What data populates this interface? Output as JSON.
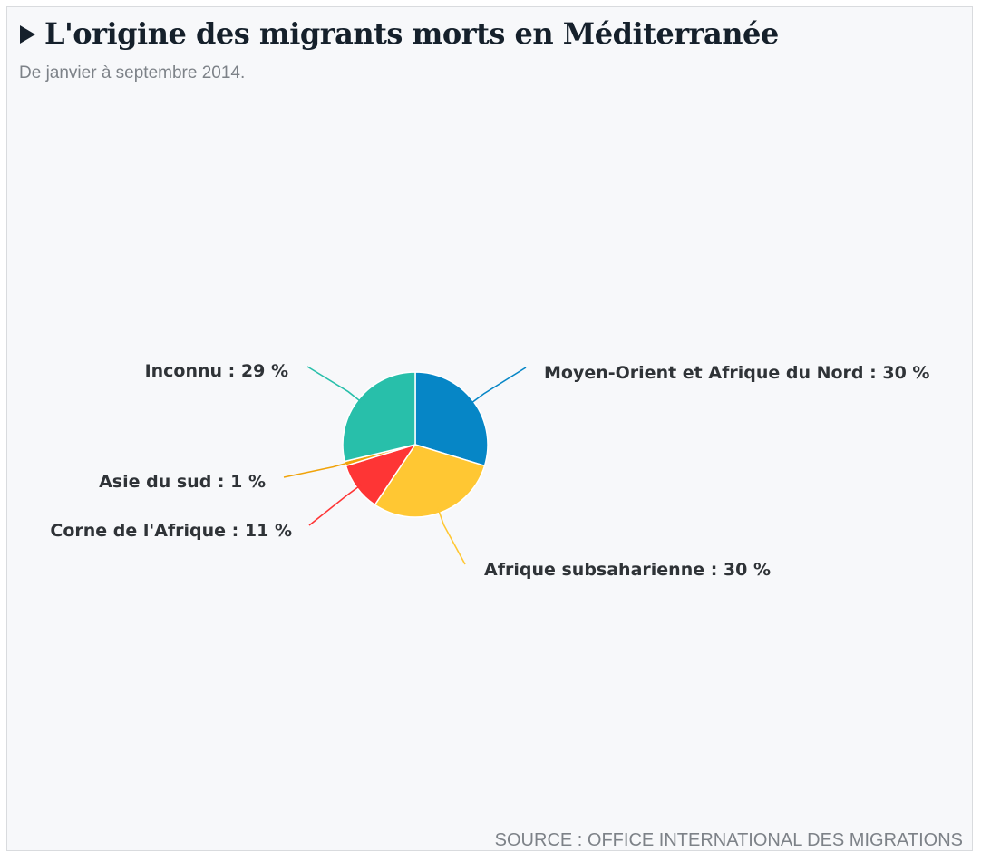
{
  "header": {
    "title": "L'origine des migrants morts en Méditerranée",
    "subtitle": "De janvier à septembre 2014."
  },
  "footer": {
    "source": "SOURCE : OFFICE INTERNATIONAL DES MIGRATIONS"
  },
  "colors": {
    "moyen_orient": "#0686c6",
    "subsaharienne": "#ffc733",
    "corne": "#fe3535",
    "asie": "#f0a30a",
    "inconnu": "#28bfaa"
  },
  "chart_data": {
    "type": "pie",
    "title": "L'origine des migrants morts en Méditerranée",
    "subtitle": "De janvier à septembre 2014.",
    "slices": [
      {
        "label": "Moyen-Orient et Afrique du Nord : 30 %",
        "name": "Moyen-Orient et Afrique du Nord",
        "value": 30,
        "color": "#0686c6"
      },
      {
        "label": "Afrique subsaharienne : 30 %",
        "name": "Afrique subsaharienne",
        "value": 30,
        "color": "#ffc733"
      },
      {
        "label": "Corne de l'Afrique : 11 %",
        "name": "Corne de l'Afrique",
        "value": 11,
        "color": "#fe3535"
      },
      {
        "label": "Asie du sud : 1 %",
        "name": "Asie du sud",
        "value": 1,
        "color": "#f0a30a"
      },
      {
        "label": "Inconnu : 29 %",
        "name": "Inconnu",
        "value": 29,
        "color": "#28bfaa"
      }
    ]
  }
}
